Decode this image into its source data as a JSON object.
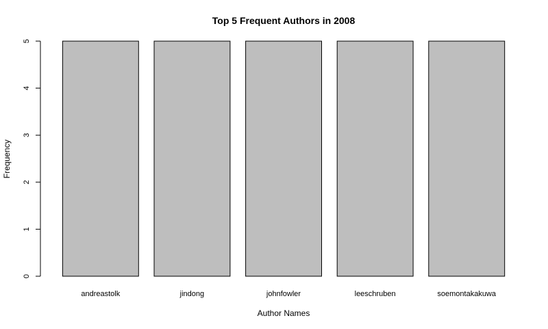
{
  "chart_data": {
    "type": "bar",
    "title": "Top 5 Frequent Authors in 2008",
    "xlabel": "Author Names",
    "ylabel": "Frequency",
    "categories": [
      "andreastolk",
      "jindong",
      "johnfowler",
      "leeschruben",
      "soemontakakuwa"
    ],
    "values": [
      5,
      5,
      5,
      5,
      5
    ],
    "ylim": [
      0,
      5
    ],
    "yticks": [
      "0",
      "1",
      "2",
      "3",
      "4",
      "5"
    ],
    "grid": false,
    "legend": "none",
    "colors": {
      "bar_fill": "#bebebe",
      "bar_stroke": "#000000"
    }
  }
}
